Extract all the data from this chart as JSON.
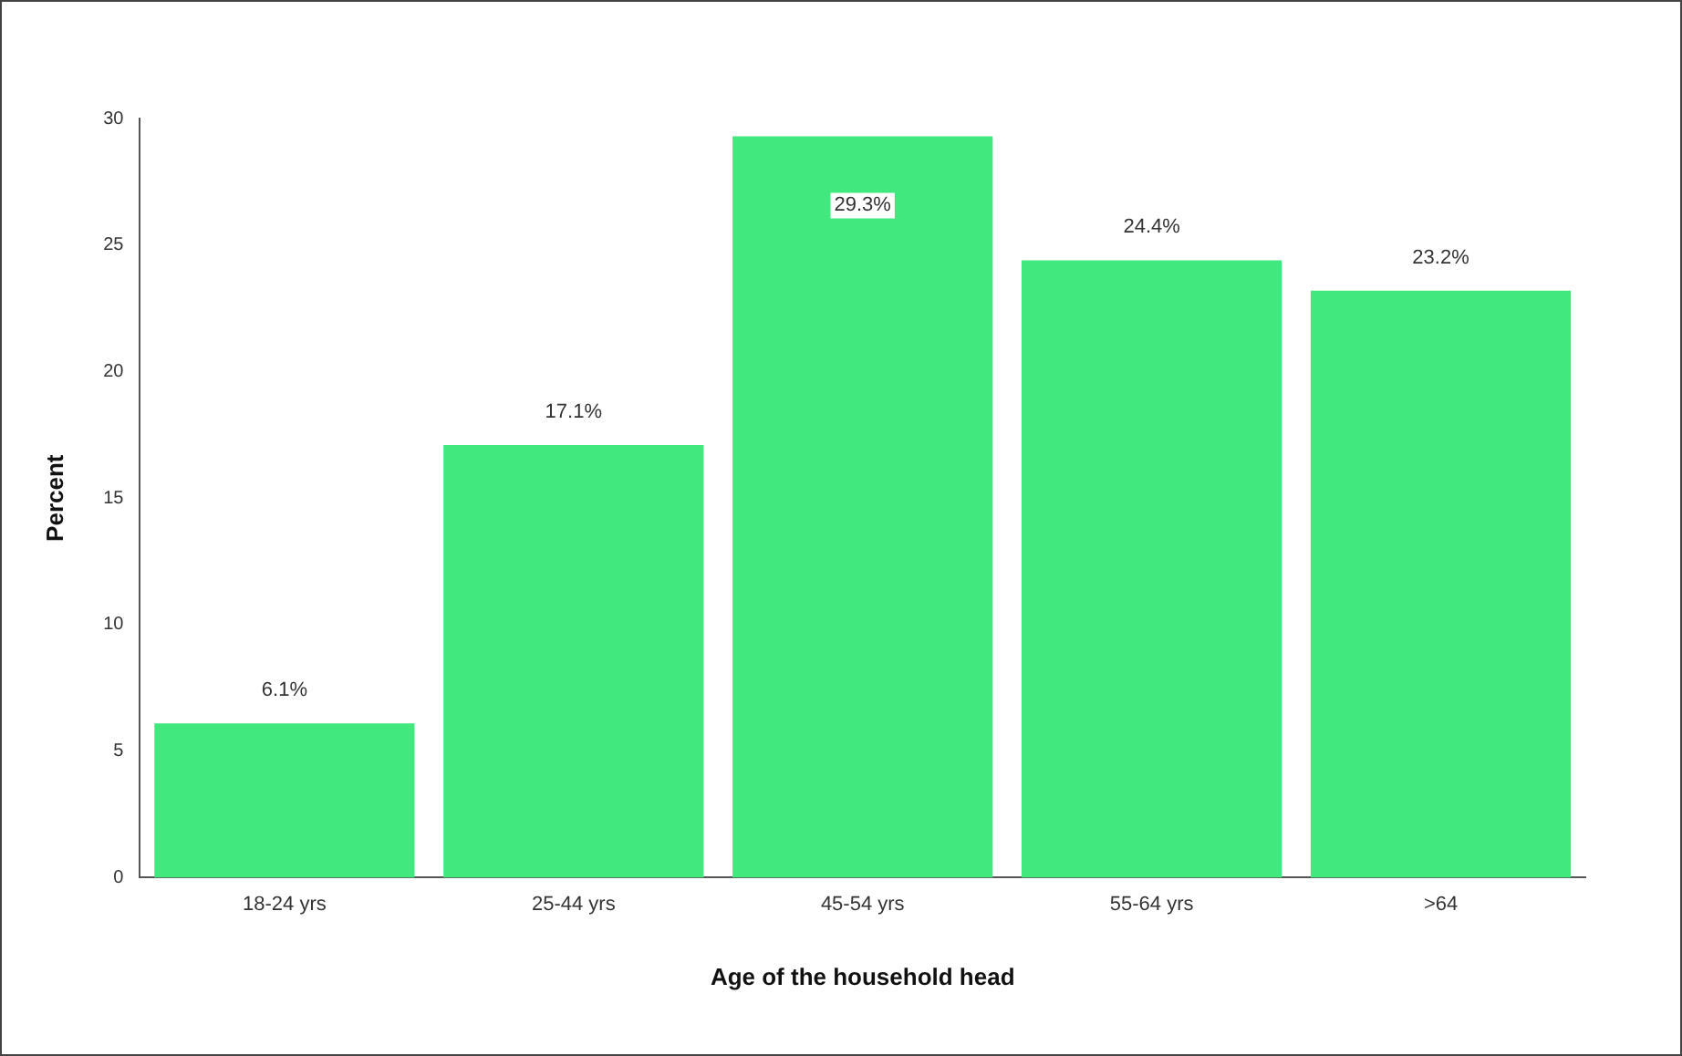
{
  "chart_data": {
    "type": "bar",
    "xlabel": "Age of the household head",
    "ylabel": "Percent",
    "categories": [
      "18-24 yrs",
      "25-44 yrs",
      "45-54 yrs",
      "55-64 yrs",
      ">64"
    ],
    "values": [
      6.1,
      17.1,
      29.3,
      24.4,
      23.2
    ],
    "value_labels": [
      "6.1%",
      "17.1%",
      "29.3%",
      "24.4%",
      "23.2%"
    ],
    "color": "#41e87d",
    "ylim": [
      0,
      30
    ],
    "yticks": [
      0,
      5,
      10,
      15,
      20,
      25,
      30
    ],
    "grid": false,
    "legend": false
  }
}
